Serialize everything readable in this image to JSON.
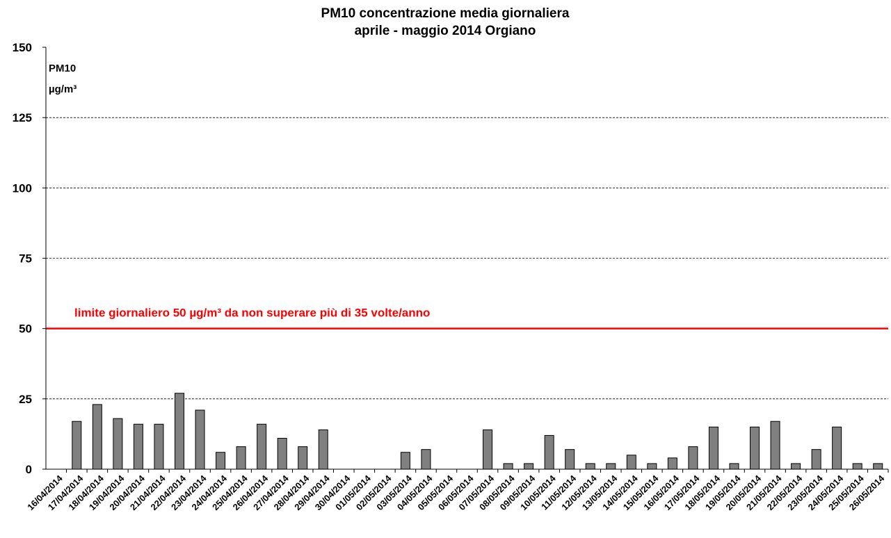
{
  "chart_data": {
    "type": "bar",
    "title": [
      "PM10 concentrazione media giornaliera",
      "aprile - maggio 2014 Orgiano"
    ],
    "y_axis_label": [
      "PM10",
      "µg/m³"
    ],
    "categories": [
      "16/04/2014",
      "17/04/2014",
      "18/04/2014",
      "19/04/2014",
      "20/04/2014",
      "21/04/2014",
      "22/04/2014",
      "23/04/2014",
      "24/04/2014",
      "25/04/2014",
      "26/04/2014",
      "27/04/2014",
      "28/04/2014",
      "29/04/2014",
      "30/04/2014",
      "01/05/2014",
      "02/05/2014",
      "03/05/2014",
      "04/05/2014",
      "05/05/2014",
      "06/05/2014",
      "07/05/2014",
      "08/05/2014",
      "09/05/2014",
      "10/05/2014",
      "11/05/2014",
      "12/05/2014",
      "13/05/2014",
      "14/05/2014",
      "15/05/2014",
      "16/05/2014",
      "17/05/2014",
      "18/05/2014",
      "19/05/2014",
      "20/05/2014",
      "21/05/2014",
      "22/05/2014",
      "23/05/2014",
      "24/05/2014",
      "25/05/2014",
      "26/05/2014"
    ],
    "values": [
      null,
      17,
      23,
      18,
      16,
      16,
      27,
      21,
      6,
      8,
      16,
      11,
      8,
      14,
      null,
      null,
      null,
      6,
      7,
      null,
      null,
      14,
      2,
      2,
      12,
      7,
      2,
      2,
      5,
      2,
      4,
      8,
      15,
      2,
      15,
      17,
      2,
      7,
      15,
      2,
      2
    ],
    "color": "#808080",
    "ylim": [
      0,
      150
    ],
    "yticks": [
      0,
      25,
      50,
      75,
      100,
      125,
      150
    ],
    "grid": true,
    "reference_line": {
      "value": 50,
      "color": "#ff0000",
      "label": "limite giornaliero 50 µg/m³ da non superare più di 35 volte/anno"
    }
  }
}
